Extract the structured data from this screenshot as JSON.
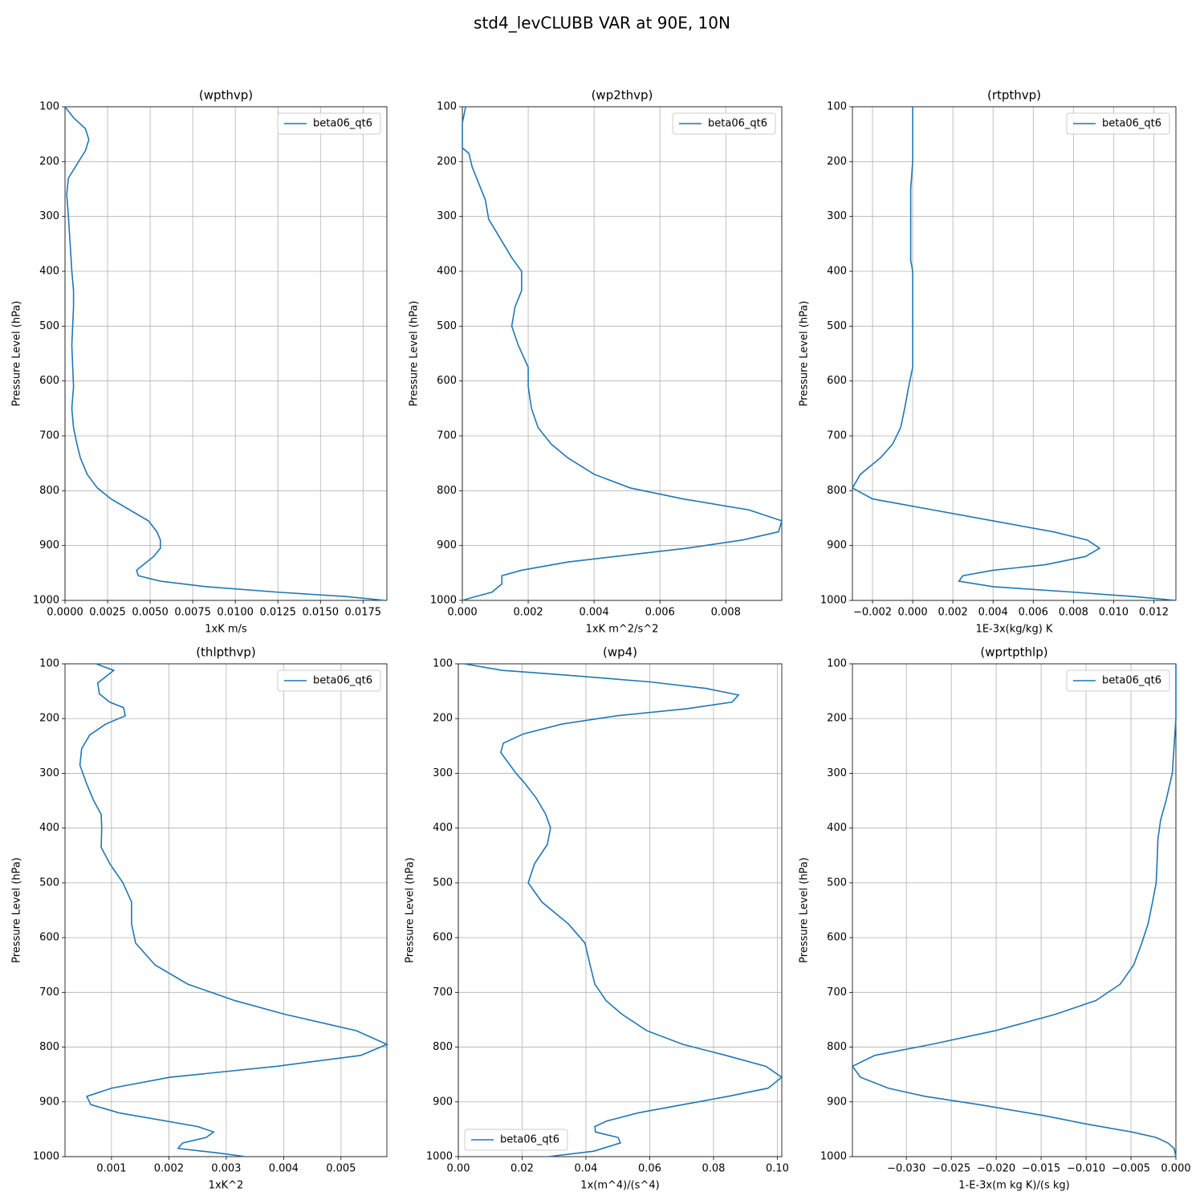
{
  "title": "std4_levCLUBB VAR at 90E, 10N",
  "chart_data": [
    {
      "type": "line",
      "title": "(wpthvp)",
      "xlabel": "1xK m/s",
      "ylabel": "Pressure Level (hPa)",
      "legend": "upper right",
      "grid": true,
      "y": [
        100,
        120,
        140,
        160,
        180,
        200,
        230,
        260,
        300,
        350,
        400,
        435,
        465,
        535,
        610,
        650,
        685,
        715,
        740,
        770,
        795,
        815,
        835,
        855,
        875,
        890,
        905,
        920,
        945,
        955,
        965,
        975,
        985,
        993,
        1000
      ],
      "series": [
        {
          "name": "beta06_qt6",
          "color": "#1f77b4",
          "values": [
            0,
            0.0005,
            0.0012,
            0.0014,
            0.0012,
            0.0008,
            0.0002,
            0.0001,
            0.0002,
            0.0003,
            0.0004,
            0.0005,
            0.0005,
            0.0004,
            0.0005,
            0.0004,
            0.0005,
            0.0007,
            0.0009,
            0.0013,
            0.0019,
            0.0027,
            0.0038,
            0.0049,
            0.0054,
            0.0056,
            0.0056,
            0.0052,
            0.0042,
            0.0043,
            0.0056,
            0.0083,
            0.0125,
            0.0165,
            0.0188
          ]
        }
      ],
      "xlim": [
        0,
        0.0189
      ],
      "xticks": [
        {
          "value": 0,
          "label": "0.0000"
        },
        0.0025,
        {
          "value": 0.005,
          "label": "0.0050"
        },
        0.0075,
        {
          "value": 0.01,
          "label": "0.0100"
        },
        0.0125,
        {
          "value": 0.015,
          "label": "0.0150"
        },
        0.0175
      ],
      "ylim": [
        1000,
        100
      ],
      "yticks": [
        100,
        200,
        300,
        400,
        500,
        600,
        700,
        800,
        900,
        1000
      ]
    },
    {
      "type": "line",
      "title": "(wp2thvp)",
      "xlabel": "1xK m^2/s^2",
      "ylabel": "Pressure Level (hPa)",
      "legend": "upper right",
      "grid": true,
      "y": [
        100,
        130,
        175,
        185,
        210,
        240,
        270,
        305,
        345,
        375,
        400,
        435,
        465,
        500,
        535,
        575,
        610,
        650,
        685,
        715,
        740,
        770,
        795,
        815,
        835,
        855,
        875,
        890,
        905,
        930,
        945,
        955,
        960,
        970,
        985,
        993,
        1000
      ],
      "series": [
        {
          "name": "beta06_qt6",
          "color": "#1f77b4",
          "values": [
            0.0001,
            0,
            0,
            0.0002,
            0.0003,
            0.0005,
            0.0007,
            0.0008,
            0.0012,
            0.0015,
            0.0018,
            0.0018,
            0.0016,
            0.0015,
            0.0017,
            0.002,
            0.002,
            0.0021,
            0.0023,
            0.0027,
            0.0032,
            0.004,
            0.0051,
            0.0067,
            0.0087,
            0.0097,
            0.0096,
            0.0085,
            0.0068,
            0.0032,
            0.0018,
            0.0012,
            0.0012,
            0.0012,
            0.0009,
            0.0004,
            0
          ]
        }
      ],
      "xlim": [
        0,
        0.0097
      ],
      "xticks": [
        {
          "value": 0,
          "label": "0.000"
        },
        0.002,
        0.004,
        0.006,
        0.008
      ],
      "ylim": [
        1000,
        100
      ],
      "yticks": [
        100,
        200,
        300,
        400,
        500,
        600,
        700,
        800,
        900,
        1000
      ]
    },
    {
      "type": "line",
      "title": "(rtpthvp)",
      "xlabel": "1E-3x(kg/kg) K",
      "ylabel": "Pressure Level (hPa)",
      "legend": "upper right",
      "grid": true,
      "y": [
        100,
        200,
        250,
        300,
        380,
        400,
        435,
        535,
        575,
        610,
        650,
        685,
        715,
        740,
        770,
        795,
        815,
        835,
        855,
        875,
        890,
        905,
        920,
        935,
        945,
        955,
        965,
        975,
        985,
        993,
        1000
      ],
      "series": [
        {
          "name": "beta06_qt6",
          "color": "#1f77b4",
          "values": [
            0,
            0,
            -0.0001,
            -0.0001,
            -0.0001,
            0,
            0,
            0,
            0,
            -0.0002,
            -0.0004,
            -0.0006,
            -0.001,
            -0.0016,
            -0.0026,
            -0.003,
            -0.002,
            0.001,
            0.004,
            0.007,
            0.0087,
            0.0093,
            0.0086,
            0.0066,
            0.004,
            0.0025,
            0.0023,
            0.004,
            0.008,
            0.011,
            0.0131
          ]
        }
      ],
      "xlim": [
        -0.003,
        0.0131
      ],
      "xticks": [
        {
          "value": -0.002,
          "label": "−0.002"
        },
        {
          "value": 0,
          "label": "0.000"
        },
        0.002,
        0.004,
        0.006,
        0.008,
        {
          "value": 0.01,
          "label": "0.010"
        },
        0.012
      ],
      "ylim": [
        1000,
        100
      ],
      "yticks": [
        100,
        200,
        300,
        400,
        500,
        600,
        700,
        800,
        900,
        1000
      ]
    },
    {
      "type": "line",
      "title": "(thlpthvp)",
      "xlabel": "1xK^2",
      "ylabel": "Pressure Level (hPa)",
      "legend": "upper right",
      "grid": true,
      "y": [
        100,
        112,
        135,
        155,
        170,
        180,
        195,
        210,
        230,
        255,
        285,
        320,
        350,
        375,
        400,
        435,
        465,
        500,
        535,
        575,
        610,
        650,
        685,
        715,
        740,
        770,
        795,
        815,
        835,
        855,
        875,
        890,
        905,
        920,
        945,
        955,
        965,
        975,
        985,
        993,
        1000
      ],
      "series": [
        {
          "name": "beta06_qt6",
          "color": "#1f77b4",
          "values": [
            0.00073,
            0.00104,
            0.00076,
            0.00079,
            0.00097,
            0.00121,
            0.00124,
            0.0009,
            0.00062,
            0.00048,
            0.00045,
            0.00057,
            0.00069,
            0.00082,
            0.00083,
            0.00082,
            0.00097,
            0.0012,
            0.00135,
            0.00135,
            0.00142,
            0.00176,
            0.00233,
            0.00315,
            0.00402,
            0.00527,
            0.0058,
            0.00535,
            0.00388,
            0.00202,
            0.001,
            0.00057,
            0.00064,
            0.00113,
            0.0025,
            0.00278,
            0.00265,
            0.00224,
            0.00216,
            0.00283,
            0.00334
          ]
        }
      ],
      "xlim": [
        0.00019,
        0.0058
      ],
      "xticks": [
        0.001,
        0.002,
        0.003,
        0.004,
        0.005
      ],
      "ylim": [
        1000,
        100
      ],
      "yticks": [
        100,
        200,
        300,
        400,
        500,
        600,
        700,
        800,
        900,
        1000
      ]
    },
    {
      "type": "line",
      "title": "(wp4)",
      "xlabel": "1x(m^4)/(s^4)",
      "ylabel": "Pressure Level (hPa)",
      "legend": "lower left",
      "grid": true,
      "y": [
        100,
        112,
        120,
        133,
        145,
        157,
        170,
        182,
        195,
        210,
        228,
        245,
        262,
        300,
        320,
        345,
        375,
        400,
        430,
        465,
        500,
        535,
        575,
        610,
        650,
        685,
        715,
        740,
        770,
        795,
        815,
        835,
        855,
        875,
        890,
        905,
        920,
        935,
        945,
        955,
        965,
        975,
        990,
        1000
      ],
      "series": [
        {
          "name": "beta06_qt6",
          "color": "#1f77b4",
          "values": [
            0.0018,
            0.0138,
            0.0325,
            0.06,
            0.0777,
            0.0878,
            0.0858,
            0.0717,
            0.0496,
            0.0325,
            0.0204,
            0.0141,
            0.0133,
            0.0181,
            0.0211,
            0.0244,
            0.0274,
            0.0289,
            0.0279,
            0.0239,
            0.0219,
            0.0262,
            0.0345,
            0.0397,
            0.0413,
            0.0428,
            0.0463,
            0.0513,
            0.0591,
            0.0704,
            0.0838,
            0.0964,
            0.1014,
            0.0971,
            0.0845,
            0.0704,
            0.0564,
            0.0465,
            0.0428,
            0.043,
            0.0501,
            0.0508,
            0.0425,
            0.0282
          ]
        }
      ],
      "xlim": [
        0,
        0.1014
      ],
      "xticks": [
        {
          "value": 0,
          "label": "0.00"
        },
        0.02,
        0.04,
        0.06,
        0.08,
        {
          "value": 0.1,
          "label": "0.10"
        }
      ],
      "ylim": [
        1000,
        100
      ],
      "yticks": [
        100,
        200,
        300,
        400,
        500,
        600,
        700,
        800,
        900,
        1000
      ]
    },
    {
      "type": "line",
      "title": "(wprtpthlp)",
      "xlabel": "1-E-3x(m kg K)/(s kg)",
      "ylabel": "Pressure Level (hPa)",
      "legend": "upper right",
      "grid": true,
      "y": [
        100,
        200,
        250,
        300,
        350,
        385,
        420,
        465,
        500,
        535,
        575,
        610,
        650,
        685,
        715,
        740,
        770,
        795,
        815,
        835,
        855,
        875,
        890,
        905,
        925,
        940,
        955,
        965,
        975,
        985,
        1000
      ],
      "series": [
        {
          "name": "beta06_qt6",
          "color": "#1f77b4",
          "values": [
            0,
            0,
            -0.0002,
            -0.0004,
            -0.0011,
            -0.0017,
            -0.002,
            -0.0021,
            -0.0022,
            -0.0026,
            -0.0031,
            -0.0038,
            -0.0047,
            -0.0062,
            -0.0089,
            -0.0134,
            -0.0201,
            -0.0272,
            -0.0335,
            -0.036,
            -0.0351,
            -0.032,
            -0.0279,
            -0.0219,
            -0.0147,
            -0.0101,
            -0.0049,
            -0.0022,
            -0.0009,
            -0.0002,
            0
          ]
        }
      ],
      "xlim": [
        -0.036,
        0
      ],
      "xticks": [
        {
          "value": -0.03,
          "label": "−0.030"
        },
        {
          "value": -0.025,
          "label": "−0.025"
        },
        {
          "value": -0.02,
          "label": "−0.020"
        },
        {
          "value": -0.015,
          "label": "−0.015"
        },
        {
          "value": -0.01,
          "label": "−0.010"
        },
        {
          "value": -0.005,
          "label": "−0.005"
        },
        {
          "value": 0,
          "label": "0.000"
        }
      ],
      "ylim": [
        1000,
        100
      ],
      "yticks": [
        100,
        200,
        300,
        400,
        500,
        600,
        700,
        800,
        900,
        1000
      ]
    }
  ]
}
